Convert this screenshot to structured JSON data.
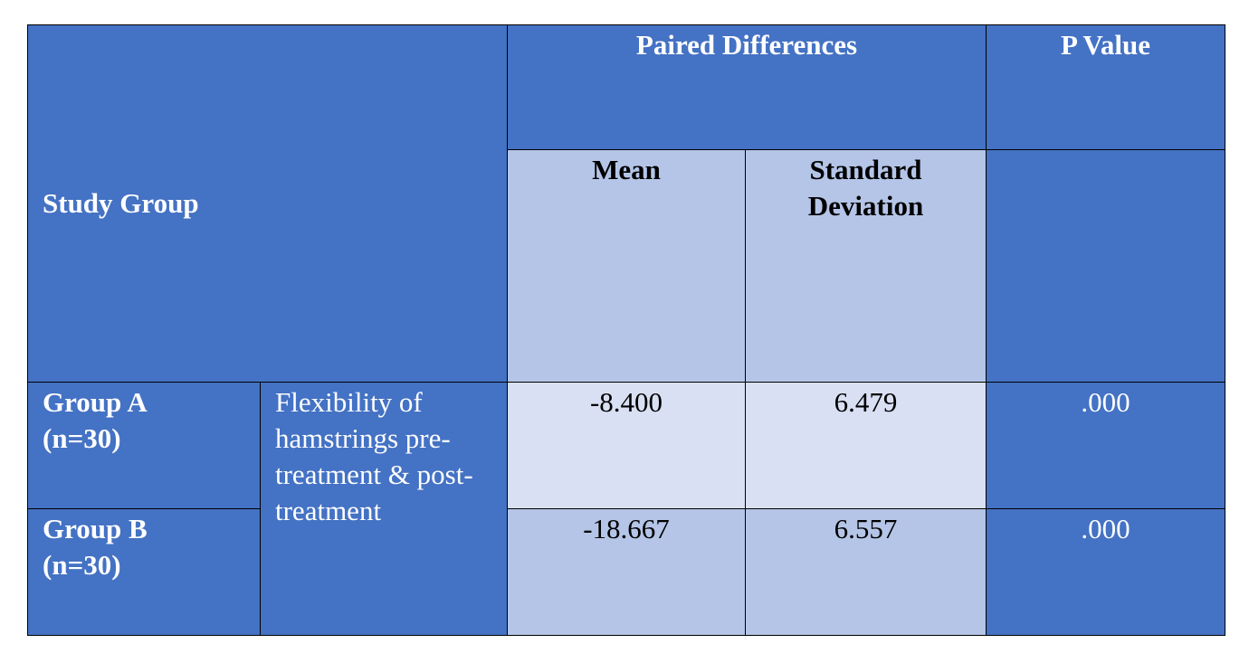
{
  "table": {
    "header": {
      "study_group": "Study Group",
      "paired_differences": "Paired Differences",
      "p_value": "P Value",
      "mean": "Mean",
      "std_dev_line1": "Standard",
      "std_dev_line2": "Deviation"
    },
    "measure": "Flexibility of hamstrings pre-treatment & post-treatment",
    "rows": [
      {
        "group_line1": "Group A",
        "group_line2": "(n=30)",
        "mean": "-8.400",
        "std_dev": "6.479",
        "p_value": ".000"
      },
      {
        "group_line1": "Group B",
        "group_line2": "(n=30)",
        "mean": "-18.667",
        "std_dev": "6.557",
        "p_value": ".000"
      }
    ],
    "colors": {
      "header_blue": "#4472c4",
      "band_mid": "#b4c5e7",
      "band_light": "#d9e0f3"
    }
  }
}
